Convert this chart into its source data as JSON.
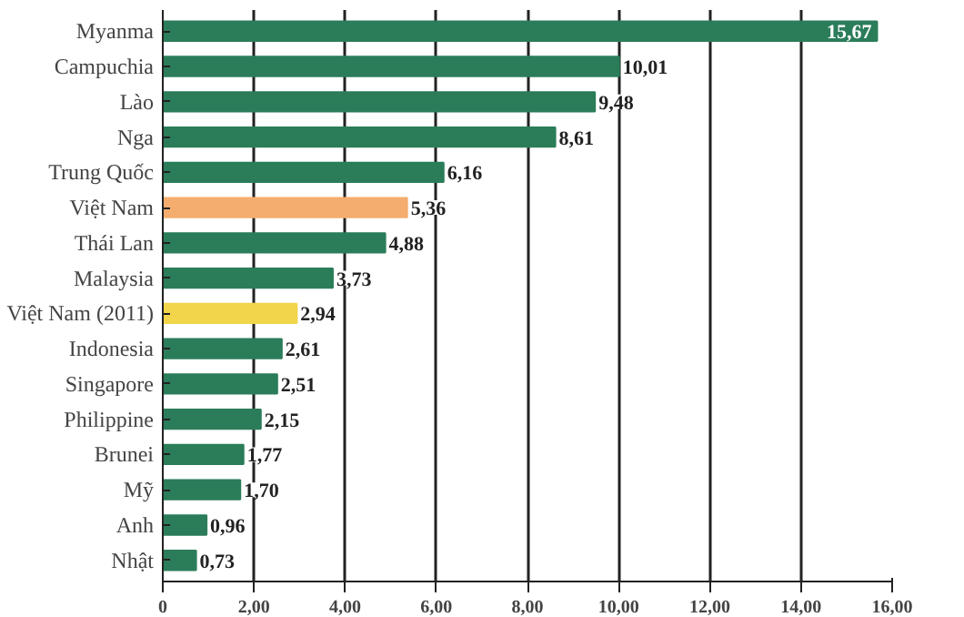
{
  "chart_data": {
    "type": "bar",
    "orientation": "horizontal",
    "categories": [
      "Myanma",
      "Campuchia",
      "Lào",
      "Nga",
      "Trung Quốc",
      "Việt Nam",
      "Thái Lan",
      "Malaysia",
      "Việt Nam (2011)",
      "Indonesia",
      "Singapore",
      "Philippine",
      "Brunei",
      "Mỹ",
      "Anh",
      "Nhật"
    ],
    "values": [
      15.67,
      10.01,
      9.48,
      8.61,
      6.16,
      5.36,
      4.88,
      3.73,
      2.94,
      2.61,
      2.51,
      2.15,
      1.77,
      1.7,
      0.96,
      0.73
    ],
    "colors": [
      "#2b7d5a",
      "#2b7d5a",
      "#2b7d5a",
      "#2b7d5a",
      "#2b7d5a",
      "#f4ad6e",
      "#2b7d5a",
      "#2b7d5a",
      "#f2d54a",
      "#2b7d5a",
      "#2b7d5a",
      "#2b7d5a",
      "#2b7d5a",
      "#2b7d5a",
      "#2b7d5a",
      "#2b7d5a"
    ],
    "value_labels": [
      "15,67",
      "10,01",
      "9,48",
      "8,61",
      "6,16",
      "5,36",
      "4,88",
      "3,73",
      "2,94",
      "2,61",
      "2,51",
      "2,15",
      "1,77",
      "1,70",
      "0,96",
      "0,73"
    ],
    "xlim": [
      0,
      16
    ],
    "xticks": [
      0,
      {
        "value": 2,
        "label": "2,00"
      },
      {
        "value": 4,
        "label": "4,00"
      },
      {
        "value": 6,
        "label": "6,00"
      },
      {
        "value": 8,
        "label": "8,00"
      },
      {
        "value": 10,
        "label": "10,00"
      },
      {
        "value": 12,
        "label": "12,00"
      },
      {
        "value": 14,
        "label": "14,00"
      },
      {
        "value": 16,
        "label": "16,00"
      }
    ],
    "grid": "x"
  }
}
